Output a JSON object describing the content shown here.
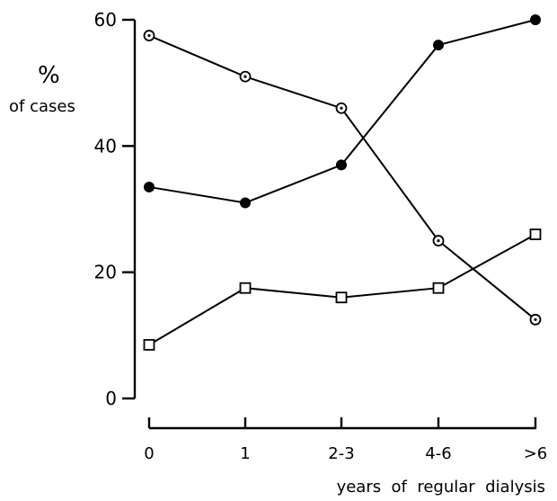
{
  "chart_data": {
    "type": "line",
    "categories": [
      "0",
      "1",
      "2-3",
      "4-6",
      ">6"
    ],
    "y_ticks": [
      "0",
      "20",
      "40",
      "60"
    ],
    "ylim": [
      0,
      60
    ],
    "ylabel_main": "%",
    "ylabel_sub": "of cases",
    "xlabel": "years  of  regular  dialysis",
    "grid": false,
    "series": [
      {
        "marker": "open-circle-dot",
        "values": [
          57.5,
          51,
          46,
          25,
          12.5
        ]
      },
      {
        "marker": "filled-circle",
        "values": [
          33.5,
          31,
          37,
          56,
          60
        ]
      },
      {
        "marker": "open-square",
        "values": [
          8.5,
          17.5,
          16,
          17.5,
          26
        ]
      }
    ]
  }
}
